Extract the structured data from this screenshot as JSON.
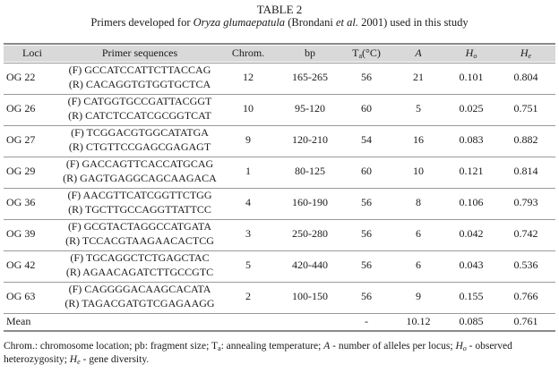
{
  "caption": {
    "table_label": "TABLE 2",
    "subtitle_pre": "Primers developed for ",
    "subtitle_species": "Oryza glumaepatula",
    "subtitle_mid": " (Brondani ",
    "subtitle_etal": "et al.",
    "subtitle_post": " 2001) used in this study"
  },
  "columns": {
    "loci": "Loci",
    "primers": "Primer sequences",
    "chrom": "Chrom.",
    "bp": "bp",
    "ta_main": "T",
    "ta_sub": "a",
    "ta_unit": "(°C)",
    "a": "A",
    "ho_main": "H",
    "ho_sub": "o",
    "he_main": "H",
    "he_sub": "e"
  },
  "rows": [
    {
      "locus": "OG 22",
      "f": "(F) GCCATCCATTCTTACCAG",
      "r": "(R) CACAGGTGTGGTGCTCA",
      "chrom": "12",
      "bp": "165-265",
      "ta": "56",
      "a": "21",
      "ho": "0.101",
      "he": "0.804"
    },
    {
      "locus": "OG 26",
      "f": "(F) CATGGTGCCGATTACGGT",
      "r": "(R) CATCTCCATCGCGGTCAT",
      "chrom": "10",
      "bp": "95-120",
      "ta": "60",
      "a": "5",
      "ho": "0.025",
      "he": "0.751"
    },
    {
      "locus": "OG 27",
      "f": "(F) TCGGACGTGGCATATGA",
      "r": "(R) CTGTTCCGAGCGAGAGT",
      "chrom": "9",
      "bp": "120-210",
      "ta": "54",
      "a": "16",
      "ho": "0.083",
      "he": "0.882"
    },
    {
      "locus": "OG 29",
      "f": "(F) GACCAGTTCACCATGCAG",
      "r": "(R) GAGTGAGGCAGCAAGACA",
      "chrom": "1",
      "bp": "80-125",
      "ta": "60",
      "a": "10",
      "ho": "0.121",
      "he": "0.814"
    },
    {
      "locus": "OG 36",
      "f": "(F) AACGTTCATCGGTTCTGG",
      "r": "(R) TGCTTGCCAGGTTATTCC",
      "chrom": "4",
      "bp": "160-190",
      "ta": "56",
      "a": "8",
      "ho": "0.106",
      "he": "0.793"
    },
    {
      "locus": "OG 39",
      "f": "(F) GCGTACTAGGCCATGATA",
      "r": "(R) TCCACGTAAGAACACTCG",
      "chrom": "3",
      "bp": "250-280",
      "ta": "56",
      "a": "6",
      "ho": "0.042",
      "he": "0.742"
    },
    {
      "locus": "OG 42",
      "f": "(F) TGCAGGCTCTGAGCTAC",
      "r": "(R) AGAACAGATCTTGCCGTC",
      "chrom": "5",
      "bp": "420-440",
      "ta": "56",
      "a": "6",
      "ho": "0.043",
      "he": "0.536"
    },
    {
      "locus": "OG 63",
      "f": "(F) CAGGGGACAAGCACATA",
      "r": "(R) TAGACGATGTCGAGAAGG",
      "chrom": "2",
      "bp": "100-150",
      "ta": "56",
      "a": "9",
      "ho": "0.155",
      "he": "0.766"
    }
  ],
  "mean": {
    "label": "Mean",
    "ta": "-",
    "a": "10.12",
    "ho": "0.085",
    "he": "0.761"
  },
  "footnote": {
    "p1": "Chrom.: chromosome location; pb: fragment size; T",
    "p1_sub": "a",
    "p2": ": annealing temperature; ",
    "p2_a": "A",
    "p3": " - number of alleles per locus; ",
    "p3_h": "H",
    "p3_sub": "o",
    "p4": " - observed heterozygosity; ",
    "p4_h": "H",
    "p4_sub": "e",
    "p5": " - gene diversity."
  }
}
